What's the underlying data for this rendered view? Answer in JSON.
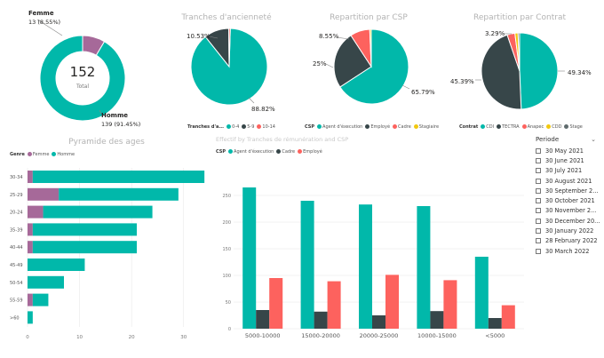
{
  "colors": {
    "teal": "#01b8aa",
    "dark": "#374649",
    "red": "#fd625e",
    "yellow": "#f2c80f",
    "purple": "#a66999",
    "grid": "#e6e6e6",
    "title": "#b3b3b3"
  },
  "donut": {
    "center_value": "152",
    "center_label": "Total",
    "femme_label": "Femme",
    "femme_value": "13 (8.55%)",
    "homme_label": "Homme",
    "homme_value": "139 (91.45%)",
    "chart_data": {
      "type": "pie",
      "categories": [
        "Femme",
        "Homme"
      ],
      "values": [
        13,
        139
      ]
    }
  },
  "anciennete": {
    "title": "Tranches d'ancienneté",
    "labels": {
      "large": "88.82%",
      "small": "10.53%"
    },
    "legend": {
      "title": "Tranches d'a...",
      "items": [
        {
          "name": "0-4",
          "color": "#01b8aa"
        },
        {
          "name": "5-9",
          "color": "#374649"
        },
        {
          "name": "10-14",
          "color": "#fd625e"
        }
      ]
    },
    "chart_data": {
      "type": "pie",
      "categories": [
        "0-4",
        "5-9",
        "10-14"
      ],
      "values": [
        88.82,
        10.53,
        0.65
      ]
    }
  },
  "csp_pie": {
    "title": "Repartition par CSP",
    "labels": {
      "a": "65.79%",
      "b": "25%",
      "c": "8.55%"
    },
    "legend": {
      "title": "CSP",
      "items": [
        {
          "name": "Agent d'éxecution",
          "color": "#01b8aa"
        },
        {
          "name": "Employé",
          "color": "#374649"
        },
        {
          "name": "Cadre",
          "color": "#fd625e"
        },
        {
          "name": "Stagiaire",
          "color": "#f2c80f"
        }
      ]
    },
    "chart_data": {
      "type": "pie",
      "categories": [
        "Agent d'éxecution",
        "Employé",
        "Cadre",
        "Stagiaire"
      ],
      "values": [
        65.79,
        25,
        8.55,
        0.66
      ]
    }
  },
  "contrat_pie": {
    "title": "Repartition par Contrat",
    "labels": {
      "a": "49.34%",
      "b": "45.39%",
      "c": "3.29%"
    },
    "legend": {
      "title": "Contrat",
      "items": [
        {
          "name": "CDI",
          "color": "#01b8aa"
        },
        {
          "name": "TECTRA",
          "color": "#374649"
        },
        {
          "name": "Anapec",
          "color": "#fd625e"
        },
        {
          "name": "CDD",
          "color": "#f2c80f"
        },
        {
          "name": "Stage",
          "color": "#5f6b6d"
        }
      ]
    },
    "chart_data": {
      "type": "pie",
      "categories": [
        "CDI",
        "TECTRA",
        "Anapec",
        "CDD",
        "Stage"
      ],
      "values": [
        49.34,
        45.39,
        3.29,
        1.32,
        0.66
      ]
    }
  },
  "pyramide": {
    "title": "Pyramide des ages",
    "legend": {
      "title": "Genre",
      "items": [
        {
          "name": "Femme",
          "color": "#a66999"
        },
        {
          "name": "Homme",
          "color": "#01b8aa"
        }
      ]
    },
    "chart_data": {
      "type": "bar",
      "categories": [
        "30-34",
        "25-29",
        "20-24",
        "35-39",
        "40-44",
        "45-49",
        "50-54",
        "55-59",
        ">60"
      ],
      "series": [
        {
          "name": "Femme",
          "values": [
            1,
            6,
            3,
            1,
            1,
            0,
            0,
            1,
            0
          ]
        },
        {
          "name": "Homme",
          "values": [
            33,
            23,
            21,
            20,
            20,
            11,
            7,
            3,
            1
          ]
        }
      ],
      "xlim": [
        0,
        35
      ],
      "xticks": [
        "0",
        "10",
        "20",
        "30"
      ]
    }
  },
  "effectif": {
    "title": "Effectif by Tranches de rémunération and CSP",
    "legend": {
      "title": "CSP",
      "items": [
        {
          "name": "Agent d'éxecution",
          "color": "#01b8aa"
        },
        {
          "name": "Cadre",
          "color": "#374649"
        },
        {
          "name": "Employé",
          "color": "#fd625e"
        }
      ]
    },
    "chart_data": {
      "type": "bar",
      "categories": [
        "5000-10000",
        "15000-20000",
        "20000-25000",
        "10000-15000",
        "<5000"
      ],
      "series": [
        {
          "name": "Agent d'éxecution",
          "values": [
            265,
            240,
            233,
            230,
            135
          ]
        },
        {
          "name": "Cadre",
          "values": [
            35,
            32,
            25,
            33,
            20
          ]
        },
        {
          "name": "Employé",
          "values": [
            95,
            89,
            101,
            91,
            44
          ]
        }
      ],
      "ylim": [
        0,
        300
      ],
      "yticks": [
        "0",
        "50",
        "100",
        "150",
        "200",
        "250"
      ]
    }
  },
  "slicer": {
    "title": "Periode",
    "items": [
      "30 May 2021",
      "30 June 2021",
      "30 July 2021",
      "30 August 2021",
      "30 September 2...",
      "30 October 2021",
      "30 November 2...",
      "30 December 20...",
      "30 January 2022",
      "28 February 2022",
      "30 March 2022"
    ]
  }
}
